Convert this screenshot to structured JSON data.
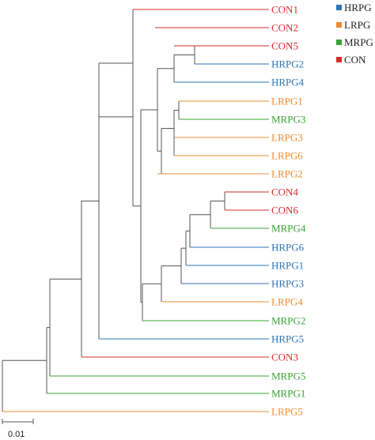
{
  "colors": {
    "HRPG": "#2f74b5",
    "LRPG": "#ed8b30",
    "MRPG": "#3aa335",
    "CON": "#d92b2b",
    "branch": "#555555"
  },
  "legend": [
    {
      "group": "HRPG",
      "label": "HRPG"
    },
    {
      "group": "LRPG",
      "label": "LRPG"
    },
    {
      "group": "MRPG",
      "label": "MRPG"
    },
    {
      "group": "CON",
      "label": "CON"
    }
  ],
  "scale_bar": {
    "value": 0.01,
    "label": "0.01"
  },
  "leaves": [
    {
      "name": "CON1",
      "group": "CON"
    },
    {
      "name": "CON2",
      "group": "CON"
    },
    {
      "name": "CON5",
      "group": "CON"
    },
    {
      "name": "HRPG2",
      "group": "HRPG"
    },
    {
      "name": "HRPG4",
      "group": "HRPG"
    },
    {
      "name": "LRPG1",
      "group": "LRPG"
    },
    {
      "name": "MRPG3",
      "group": "MRPG"
    },
    {
      "name": "LRPG3",
      "group": "LRPG"
    },
    {
      "name": "LRPG6",
      "group": "LRPG"
    },
    {
      "name": "LRPG2",
      "group": "LRPG"
    },
    {
      "name": "CON4",
      "group": "CON"
    },
    {
      "name": "CON6",
      "group": "CON"
    },
    {
      "name": "MRPG4",
      "group": "MRPG"
    },
    {
      "name": "HRPG6",
      "group": "HRPG"
    },
    {
      "name": "HRPG1",
      "group": "HRPG"
    },
    {
      "name": "HRPG3",
      "group": "HRPG"
    },
    {
      "name": "LRPG4",
      "group": "LRPG"
    },
    {
      "name": "MRPG2",
      "group": "MRPG"
    },
    {
      "name": "HRPG5",
      "group": "HRPG"
    },
    {
      "name": "CON3",
      "group": "CON"
    },
    {
      "name": "MRPG5",
      "group": "MRPG"
    },
    {
      "name": "MRPG1",
      "group": "MRPG"
    },
    {
      "name": "LRPG5",
      "group": "LRPG"
    }
  ]
}
